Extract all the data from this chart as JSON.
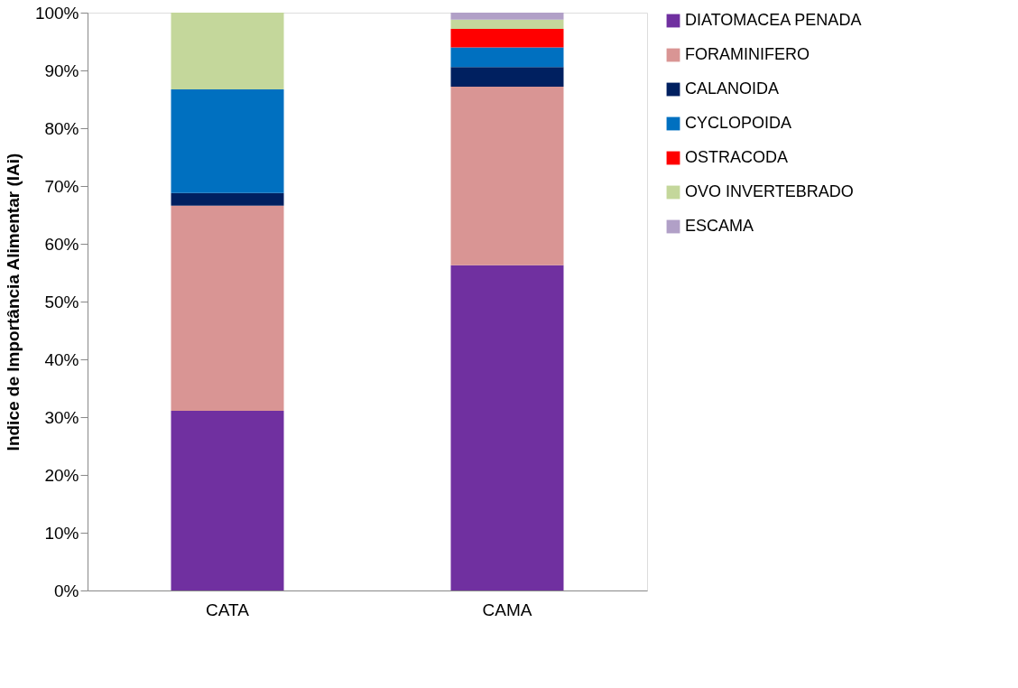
{
  "chart_data": {
    "type": "bar",
    "stacked": true,
    "ylabel": "Indice de Importância Alimentar (IAi)",
    "categories": [
      "CATA",
      "CAMA"
    ],
    "ylim": [
      0,
      100
    ],
    "yticks": [
      {
        "value": 0,
        "label": "0%"
      },
      {
        "value": 10,
        "label": "10%"
      },
      {
        "value": 20,
        "label": "20%"
      },
      {
        "value": 30,
        "label": "30%"
      },
      {
        "value": 40,
        "label": "40%"
      },
      {
        "value": 50,
        "label": "50%"
      },
      {
        "value": 60,
        "label": "60%"
      },
      {
        "value": 70,
        "label": "70%"
      },
      {
        "value": 80,
        "label": "80%"
      },
      {
        "value": 90,
        "label": "90%"
      },
      {
        "value": 100,
        "label": "100%"
      }
    ],
    "legend": "right",
    "grid": false,
    "series": [
      {
        "name": "DIATOMACEA PENADA",
        "color": "#7030a0",
        "values": [
          31.1,
          56.3
        ]
      },
      {
        "name": "FORAMINIFERO",
        "color": "#d99594",
        "values": [
          35.5,
          30.9
        ]
      },
      {
        "name": "CALANOIDA",
        "color": "#002060",
        "values": [
          2.2,
          3.4
        ]
      },
      {
        "name": "CYCLOPOIDA",
        "color": "#0070c0",
        "values": [
          17.9,
          3.4
        ]
      },
      {
        "name": "OSTRACODA",
        "color": "#ff0000",
        "values": [
          0,
          3.2
        ]
      },
      {
        "name": "OVO INVERTEBRADO",
        "color": "#c4d79b",
        "values": [
          13.3,
          1.6
        ]
      },
      {
        "name": "ESCAMA",
        "color": "#b1a0c7",
        "values": [
          0,
          1.2
        ]
      }
    ]
  }
}
